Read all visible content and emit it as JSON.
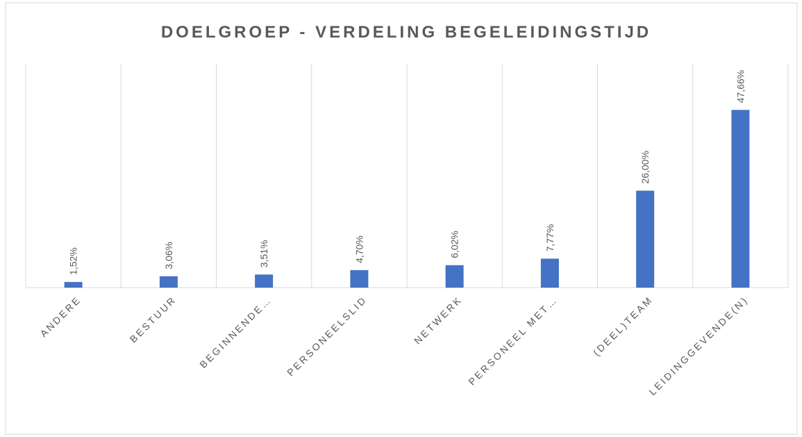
{
  "chart_data": {
    "type": "bar",
    "title": "DOELGROEP - VERDELING BEGELEIDINGSTIJD",
    "categories": [
      "ANDERE",
      "BESTUUR",
      "BEGINNENDE…",
      "PERSONEELSLID",
      "NETWERK",
      "PERSONEEL MET…",
      "(DEEL)TEAM",
      "LEIDINGGEVENDE(N)"
    ],
    "values": [
      1.52,
      3.06,
      3.51,
      4.7,
      6.02,
      7.77,
      26.0,
      47.66
    ],
    "value_labels": [
      "1,52%",
      "3,06%",
      "3,51%",
      "4,70%",
      "6,02%",
      "7,77%",
      "26,00%",
      "47,66%"
    ],
    "color": "#4472c4",
    "ylim": [
      0,
      60
    ]
  }
}
